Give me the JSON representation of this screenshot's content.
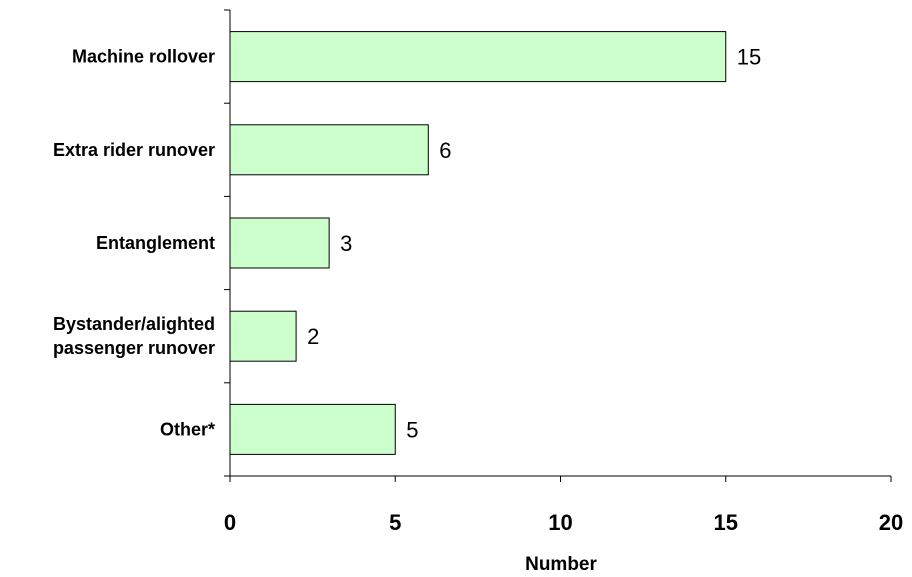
{
  "chart_data": {
    "type": "bar",
    "orientation": "horizontal",
    "categories": [
      [
        "Machine rollover"
      ],
      [
        "Extra rider runover"
      ],
      [
        "Entanglement"
      ],
      [
        "Bystander/alighted",
        "passenger runover"
      ],
      [
        "Other*"
      ]
    ],
    "values": [
      15,
      6,
      3,
      2,
      5
    ],
    "xlabel": "Number",
    "ylabel": "",
    "title": "",
    "xlim": [
      0,
      20
    ],
    "xticks": [
      0,
      5,
      10,
      15,
      20
    ],
    "grid": false,
    "legend": "none",
    "colors": {
      "bar_fill": "#ccffcc",
      "bar_stroke": "#000000",
      "axis": "#000000"
    }
  }
}
